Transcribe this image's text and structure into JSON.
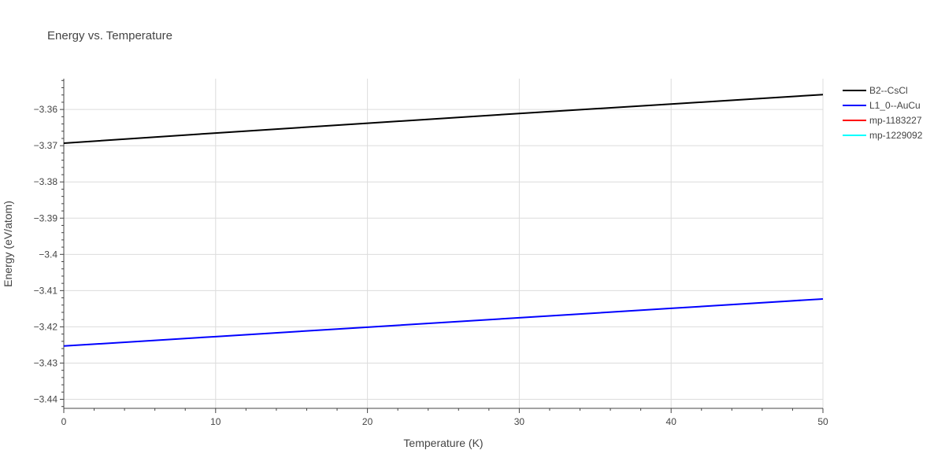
{
  "chart_data": {
    "type": "line",
    "title": "Energy vs. Temperature",
    "xlabel": "Temperature (K)",
    "ylabel": "Energy (eV/atom)",
    "xlim": [
      0,
      50
    ],
    "ylim": [
      -3.4425,
      -3.3515
    ],
    "x_ticks": [
      0,
      10,
      20,
      30,
      40,
      50
    ],
    "x_tick_labels": [
      "0",
      "10",
      "20",
      "30",
      "40",
      "50"
    ],
    "y_ticks": [
      -3.44,
      -3.43,
      -3.42,
      -3.41,
      -3.4,
      -3.39,
      -3.38,
      -3.37,
      -3.36
    ],
    "y_tick_labels": [
      "−3.44",
      "−3.43",
      "−3.42",
      "−3.41",
      "−3.4",
      "−3.39",
      "−3.38",
      "−3.37",
      "−3.36"
    ],
    "grid": true,
    "legend_position": "right",
    "series": [
      {
        "name": "B2--CsCl",
        "color": "#000000",
        "x": [
          0,
          10,
          20,
          30,
          40,
          50
        ],
        "y": [
          -3.3693,
          -3.3665,
          -3.3638,
          -3.3611,
          -3.3585,
          -3.3559
        ]
      },
      {
        "name": "L1_0--AuCu",
        "color": "#0000ff",
        "x": [
          0,
          10,
          20,
          30,
          40,
          50
        ],
        "y": [
          -3.4253,
          -3.4227,
          -3.4201,
          -3.4175,
          -3.4149,
          -3.4123
        ]
      },
      {
        "name": "mp-1183227",
        "color": "#ff0000",
        "x": [],
        "y": []
      },
      {
        "name": "mp-1229092",
        "color": "#00ffff",
        "x": [],
        "y": []
      }
    ]
  }
}
